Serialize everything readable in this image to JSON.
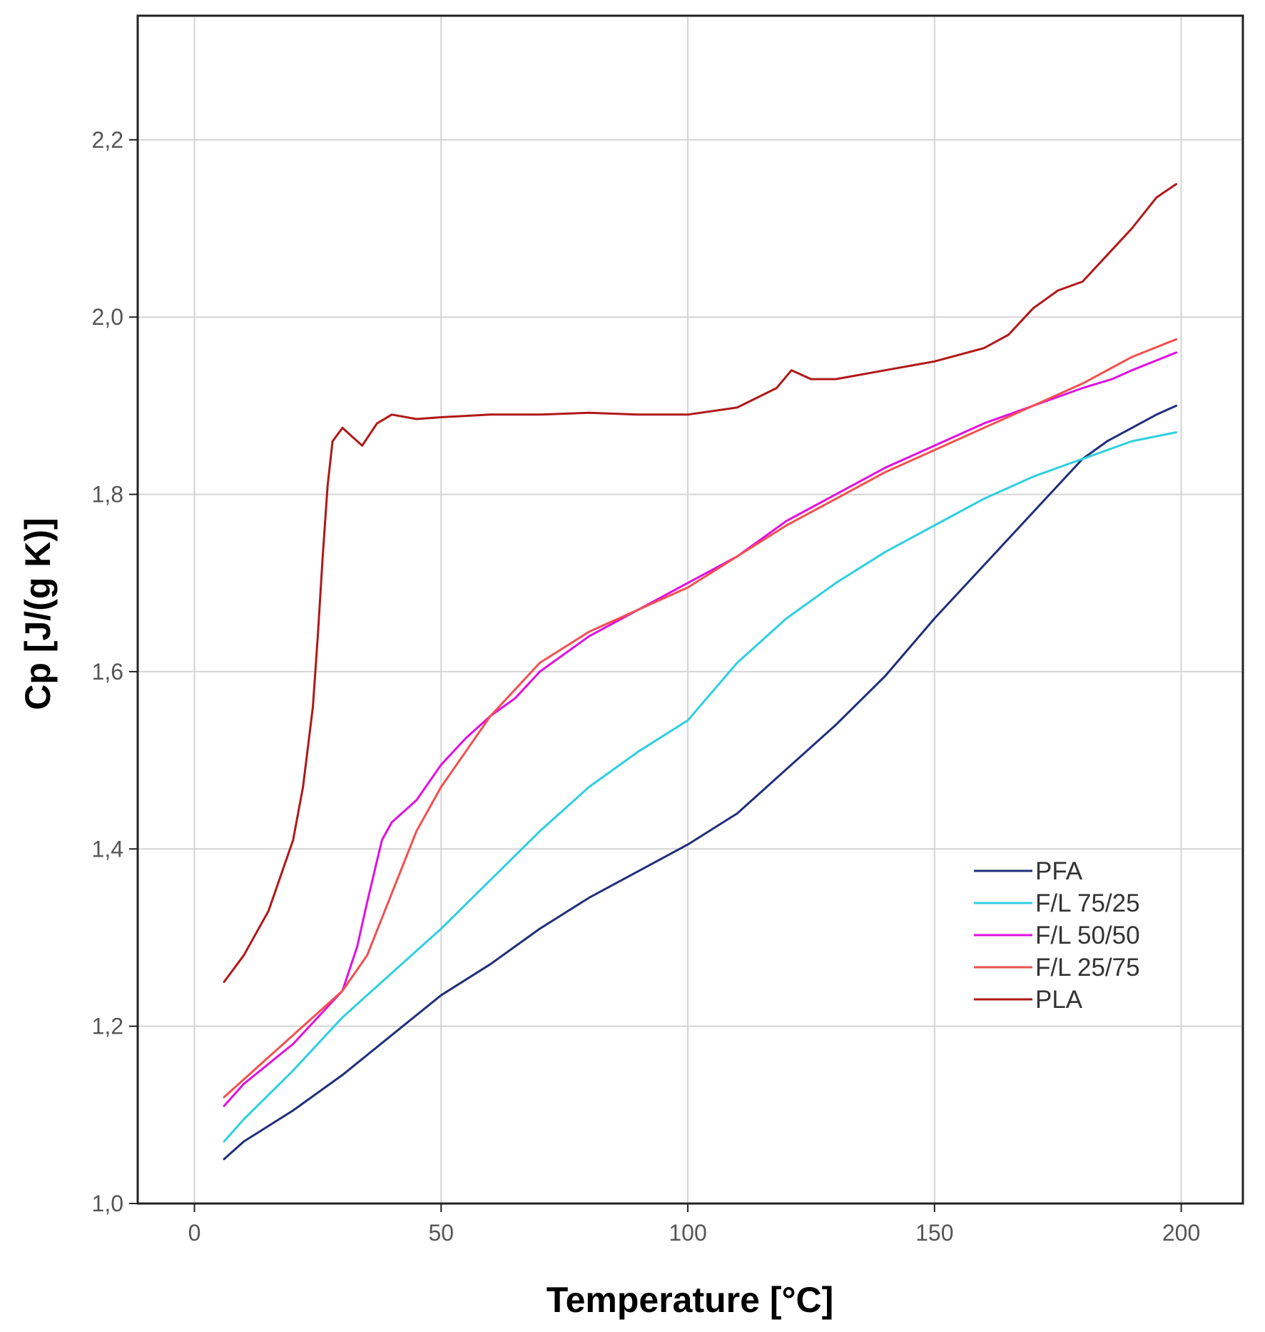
{
  "chart_data": {
    "type": "line",
    "title": "",
    "xlabel": "Temperature [°C]",
    "ylabel": "Cp [J/(g K)]",
    "xlim": [
      -11.5,
      212.5
    ],
    "ylim": [
      1.0,
      2.34
    ],
    "x_ticks": [
      0,
      50,
      100,
      150,
      200
    ],
    "x_tick_labels": [
      "0",
      "50",
      "100",
      "150",
      "200"
    ],
    "y_ticks": [
      1.0,
      1.2,
      1.4,
      1.6,
      1.8,
      2.0,
      2.2
    ],
    "y_tick_labels": [
      "1,0",
      "1,2",
      "1,4",
      "1,6",
      "1,8",
      "2,0",
      "2,2"
    ],
    "grid": true,
    "legend_position": "lower-right",
    "series": [
      {
        "name": "PFA",
        "color": "#1f2f7a",
        "x": [
          6,
          10,
          20,
          30,
          40,
          50,
          60,
          70,
          80,
          90,
          100,
          110,
          120,
          130,
          140,
          150,
          160,
          170,
          180,
          185,
          190,
          195,
          199
        ],
        "y": [
          1.05,
          1.07,
          1.105,
          1.145,
          1.19,
          1.235,
          1.27,
          1.31,
          1.345,
          1.375,
          1.405,
          1.44,
          1.49,
          1.54,
          1.595,
          1.66,
          1.72,
          1.78,
          1.84,
          1.86,
          1.875,
          1.89,
          1.9
        ]
      },
      {
        "name": "F/L 75/25",
        "color": "#2ecfe0",
        "x": [
          6,
          10,
          20,
          30,
          40,
          50,
          60,
          70,
          80,
          90,
          100,
          110,
          120,
          130,
          140,
          150,
          160,
          170,
          180,
          190,
          199
        ],
        "y": [
          1.07,
          1.095,
          1.15,
          1.21,
          1.26,
          1.31,
          1.365,
          1.42,
          1.47,
          1.51,
          1.545,
          1.61,
          1.66,
          1.7,
          1.735,
          1.765,
          1.795,
          1.82,
          1.84,
          1.86,
          1.87
        ]
      },
      {
        "name": "F/L 50/50",
        "color": "#e010e0",
        "x": [
          6,
          10,
          20,
          30,
          33,
          35,
          38,
          40,
          45,
          50,
          55,
          60,
          65,
          70,
          80,
          90,
          100,
          110,
          120,
          130,
          140,
          150,
          160,
          170,
          180,
          186,
          190,
          199
        ],
        "y": [
          1.11,
          1.135,
          1.18,
          1.24,
          1.29,
          1.34,
          1.41,
          1.43,
          1.455,
          1.495,
          1.525,
          1.55,
          1.57,
          1.6,
          1.64,
          1.67,
          1.7,
          1.73,
          1.77,
          1.8,
          1.83,
          1.855,
          1.88,
          1.9,
          1.92,
          1.93,
          1.94,
          1.96
        ]
      },
      {
        "name": "F/L 25/75",
        "color": "#f25050",
        "x": [
          6,
          10,
          20,
          30,
          35,
          40,
          45,
          50,
          55,
          60,
          65,
          70,
          80,
          90,
          100,
          110,
          120,
          130,
          140,
          150,
          160,
          170,
          180,
          190,
          199
        ],
        "y": [
          1.12,
          1.14,
          1.19,
          1.24,
          1.28,
          1.35,
          1.42,
          1.47,
          1.51,
          1.55,
          1.58,
          1.61,
          1.645,
          1.67,
          1.695,
          1.73,
          1.765,
          1.795,
          1.825,
          1.85,
          1.875,
          1.9,
          1.925,
          1.955,
          1.975
        ]
      },
      {
        "name": "PLA",
        "color": "#b01818",
        "x": [
          6,
          10,
          15,
          20,
          22,
          24,
          25,
          26,
          27,
          28,
          30,
          32,
          34,
          37,
          40,
          45,
          50,
          60,
          70,
          80,
          90,
          100,
          110,
          118,
          121,
          125,
          130,
          140,
          150,
          160,
          165,
          170,
          175,
          180,
          185,
          190,
          195,
          199
        ],
        "y": [
          1.25,
          1.28,
          1.33,
          1.41,
          1.47,
          1.56,
          1.64,
          1.73,
          1.81,
          1.86,
          1.875,
          1.865,
          1.855,
          1.88,
          1.89,
          1.885,
          1.887,
          1.89,
          1.89,
          1.892,
          1.89,
          1.89,
          1.898,
          1.92,
          1.94,
          1.93,
          1.93,
          1.94,
          1.95,
          1.965,
          1.98,
          2.01,
          2.03,
          2.04,
          2.07,
          2.1,
          2.135,
          2.15
        ]
      }
    ]
  }
}
